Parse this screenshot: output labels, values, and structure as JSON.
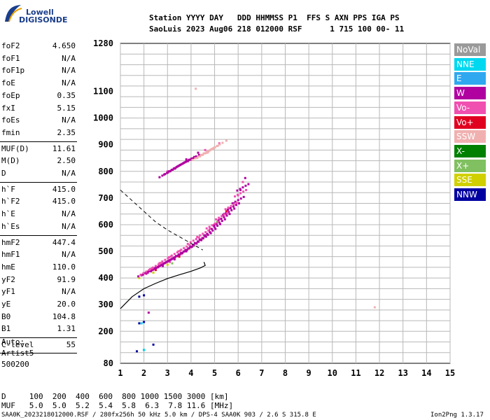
{
  "logo": {
    "line1": "Lowell",
    "line2": "DIGISONDE"
  },
  "header": {
    "line1": "Station YYYY DAY   DDD HHMMSS P1  FFS S AXN PPS IGA PS",
    "line2": "SaoLuis 2023 Aug06 218 012000 RSF      1 715 100 00- 11"
  },
  "params_group1": [
    {
      "k": "foF2",
      "v": "4.650"
    },
    {
      "k": "foF1",
      "v": "N/A"
    },
    {
      "k": "foF1p",
      "v": "N/A"
    },
    {
      "k": "foE",
      "v": "N/A"
    },
    {
      "k": "foEp",
      "v": "0.35"
    },
    {
      "k": "fxI",
      "v": "5.15"
    },
    {
      "k": "foEs",
      "v": "N/A"
    },
    {
      "k": "fmin",
      "v": "2.35"
    }
  ],
  "params_group2": [
    {
      "k": "MUF(D)",
      "v": "11.61"
    },
    {
      "k": "M(D)",
      "v": "2.50"
    },
    {
      "k": "D",
      "v": "N/A"
    }
  ],
  "params_group3": [
    {
      "k": "h`F",
      "v": "415.0"
    },
    {
      "k": "h`F2",
      "v": "415.0"
    },
    {
      "k": "h`E",
      "v": "N/A"
    },
    {
      "k": "h`Es",
      "v": "N/A"
    }
  ],
  "params_group4": [
    {
      "k": "hmF2",
      "v": "447.4"
    },
    {
      "k": "hmF1",
      "v": "N/A"
    },
    {
      "k": "hmE",
      "v": "110.0"
    },
    {
      "k": "yF2",
      "v": "91.9"
    },
    {
      "k": "yF1",
      "v": "N/A"
    },
    {
      "k": "yE",
      "v": "20.0"
    },
    {
      "k": "B0",
      "v": "104.8"
    },
    {
      "k": "B1",
      "v": "1.31"
    }
  ],
  "clevel": {
    "k": "C-level",
    "v": "55"
  },
  "auto": {
    "l1": "Auto:",
    "l2": "Artist5",
    "l3": "500200"
  },
  "legend": [
    {
      "label": "NoVal",
      "color": "#9a9a9a"
    },
    {
      "label": "NNE",
      "color": "#00d8f0"
    },
    {
      "label": "E",
      "color": "#30a8f0"
    },
    {
      "label": "W",
      "color": "#b000a0"
    },
    {
      "label": "Vo-",
      "color": "#f050b0"
    },
    {
      "label": "Vo+",
      "color": "#e00020"
    },
    {
      "label": "SSW",
      "color": "#f0b0b0"
    },
    {
      "label": "X-",
      "color": "#008000"
    },
    {
      "label": "X+",
      "color": "#80c060"
    },
    {
      "label": "SSE",
      "color": "#d0d000"
    },
    {
      "label": "NNW",
      "color": "#0000a0"
    }
  ],
  "footer": {
    "line1": "D     100  200  400  600  800 1000 1500 3000 [km]",
    "line2": "MUF   5.0  5.0  5.2  5.4  5.8  6.3  7.8 11.6 [MHz]",
    "file": "SAA0K_2023218012000.RSF / 280fx256h 50 kHz 5.0 km / DPS-4 SAA0K 903 / 2.6 S 315.8 E",
    "version": "Ion2Png 1.3.17"
  },
  "chart_data": {
    "type": "scatter",
    "title": "",
    "xlabel": "",
    "ylabel": "",
    "xlim": [
      1,
      15
    ],
    "ylim": [
      80,
      1280
    ],
    "x_ticks": [
      1,
      2,
      3,
      4,
      5,
      6,
      7,
      8,
      9,
      10,
      11,
      12,
      13,
      14,
      15
    ],
    "y_ticks": [
      80,
      200,
      300,
      400,
      500,
      600,
      700,
      800,
      900,
      1000,
      1100,
      1280
    ],
    "grid": true,
    "legend_placement": "right",
    "series": [
      {
        "name": "W",
        "color": "#b000a0",
        "points": [
          [
            1.9,
            410
          ],
          [
            2.3,
            425
          ],
          [
            2.8,
            445
          ],
          [
            3.3,
            470
          ],
          [
            3.8,
            500
          ],
          [
            4.2,
            530
          ],
          [
            4.6,
            560
          ],
          [
            5.0,
            600
          ],
          [
            5.4,
            640
          ],
          [
            5.8,
            680
          ],
          [
            6.1,
            730
          ],
          [
            6.3,
            775
          ],
          [
            3.3,
            810
          ],
          [
            3.8,
            845
          ],
          [
            4.3,
            870
          ],
          [
            2.2,
            270
          ]
        ]
      },
      {
        "name": "Vo-",
        "color": "#f050b0",
        "points": [
          [
            2.1,
            415
          ],
          [
            2.6,
            440
          ],
          [
            3.1,
            460
          ],
          [
            3.6,
            490
          ],
          [
            4.0,
            515
          ],
          [
            4.4,
            545
          ],
          [
            4.8,
            585
          ],
          [
            5.2,
            620
          ],
          [
            5.6,
            660
          ],
          [
            6.0,
            710
          ],
          [
            6.2,
            760
          ],
          [
            3.0,
            800
          ],
          [
            4.6,
            880
          ],
          [
            5.2,
            905
          ]
        ]
      },
      {
        "name": "Vo+",
        "color": "#e00020",
        "points": [
          [
            2.5,
            430
          ],
          [
            3.5,
            480
          ],
          [
            4.5,
            550
          ],
          [
            5.5,
            650
          ]
        ]
      },
      {
        "name": "SSW",
        "color": "#f0b0b0",
        "points": [
          [
            4.7,
            870
          ],
          [
            5.5,
            915
          ],
          [
            4.2,
            1110
          ],
          [
            11.8,
            290
          ]
        ]
      },
      {
        "name": "SSE",
        "color": "#d0d000",
        "points": [
          [
            1.8,
            400
          ],
          [
            2.4,
            420
          ],
          [
            3.0,
            450
          ],
          [
            3.9,
            510
          ],
          [
            4.5,
            548
          ]
        ]
      },
      {
        "name": "NNW",
        "color": "#0000a0",
        "points": [
          [
            1.8,
            330
          ],
          [
            2.0,
            335
          ],
          [
            1.8,
            230
          ],
          [
            2.0,
            235
          ],
          [
            1.7,
            125
          ],
          [
            2.0,
            130
          ],
          [
            2.4,
            150
          ]
        ]
      },
      {
        "name": "NNE",
        "color": "#00d8f0",
        "points": [
          [
            2.0,
            130
          ],
          [
            1.9,
            230
          ]
        ]
      },
      {
        "name": "X+",
        "color": "#80c060",
        "points": [
          [
            3.2,
            455
          ],
          [
            4.1,
            520
          ],
          [
            5.1,
            610
          ]
        ]
      }
    ]
  }
}
